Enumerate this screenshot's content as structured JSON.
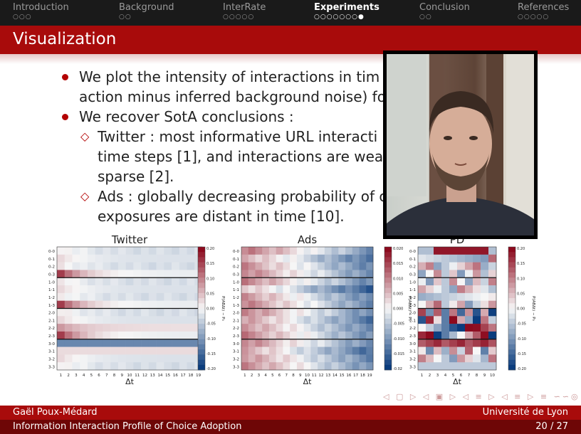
{
  "nav": {
    "sections": [
      {
        "label": "Introduction",
        "dots": "○○○",
        "active": false
      },
      {
        "label": "Background",
        "dots": "○○",
        "active": false
      },
      {
        "label": "InterRate",
        "dots": "○○○○○",
        "active": false
      },
      {
        "label": "Experiments",
        "dots": "○○○○○○○●",
        "active": true
      },
      {
        "label": "Conclusion",
        "dots": "○○",
        "active": false
      },
      {
        "label": "References",
        "dots": "○○○○○",
        "active": false
      }
    ]
  },
  "slide": {
    "title": "Visualization",
    "bullet1_line1": "We plot the intensity of interactions in tim",
    "bullet1_line2": "action minus inferred background noise) fo",
    "bullet2": "We recover SotA conclusions :",
    "sub1_line1": "Twitter : most informative URL interacti",
    "sub1_line2": "time steps [1], and interactions are weak",
    "sub1_line3": "sparse [2].",
    "sub2_line1": "Ads : globally decreasing probability of c",
    "sub2_line2": "exposures are distant in time [10]."
  },
  "figure": {
    "panels": [
      {
        "title": "Twitter",
        "xlabel": "Δt",
        "cbar_label": "P(ABΔt) − P₀",
        "cbar_ticks": [
          "0.20",
          "0.15",
          "0.10",
          "0.05",
          "0.00",
          "-0.05",
          "-0.10",
          "-0.15",
          "-0.20"
        ],
        "vmax": 0.2
      },
      {
        "title": "Ads",
        "xlabel": "Δt",
        "cbar_label": "P(ABΔt) − P₀",
        "cbar_ticks": [
          "0.020",
          "0.015",
          "0.010",
          "0.005",
          "0.000",
          "-0.005",
          "-0.010",
          "-0.015",
          "-0.02"
        ],
        "vmax": 0.02
      },
      {
        "title": "PD",
        "xlabel": "Δt",
        "cbar_label": "P(ABΔt) − P₀",
        "cbar_ticks": [
          "0.20",
          "0.15",
          "0.10",
          "0.05",
          "0.00",
          "-0.05",
          "-0.10",
          "-0.15",
          "-0.20"
        ],
        "vmax": 0.2
      }
    ],
    "y_tick_labels": [
      "0-0",
      "0-1",
      "0-2",
      "0-3",
      "1-0",
      "1-1",
      "1-2",
      "1-3",
      "2-0",
      "2-1",
      "2-2",
      "2-3",
      "3-0",
      "3-1",
      "3-2",
      "3-3"
    ],
    "x_tick_labels_long": [
      "1",
      "2",
      "3",
      "4",
      "5",
      "6",
      "7",
      "8",
      "9",
      "10",
      "11",
      "12",
      "13",
      "14",
      "15",
      "16",
      "17",
      "18",
      "19"
    ],
    "x_tick_labels_short": [
      "1",
      "2",
      "3",
      "4",
      "5",
      "6",
      "7",
      "8",
      "9",
      "10"
    ]
  },
  "beamer_nav_symbols": "◁ ▢ ▷ ◁ ▣ ▷ ◁ ≡ ▷ ◁ ≡ ▷ ≡ ∽∽◎",
  "footer": {
    "author": "Gaël Poux-Médard",
    "institute": "Université de Lyon",
    "talk_title": "Information Interaction Profile of Choice Adoption",
    "page": "20 / 27"
  },
  "colors": {
    "accent": "#a80b0b",
    "footer_dark": "#6e0606",
    "nav_bg": "#1a1a1a",
    "bullet": "#b30000"
  }
}
